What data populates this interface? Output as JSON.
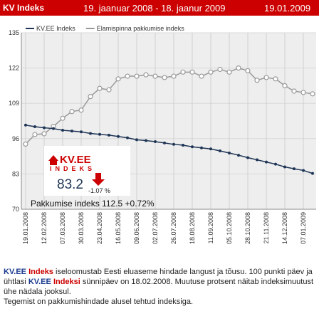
{
  "header": {
    "name": "KV Indeks",
    "period": "19. jaanuar 2008 - 18. jaanur 2009",
    "date": "19.01.2009"
  },
  "chart_data": {
    "type": "line",
    "categories": [
      "19.01.2008",
      null,
      "12.02.2008",
      null,
      "07.03.2008",
      null,
      "30.03.2008",
      null,
      "23.04.2008",
      null,
      "16.05.2008",
      null,
      "09.06.2008",
      null,
      "02.07.2008",
      null,
      "26.07.2008",
      null,
      "18.08.2008",
      null,
      "11.09.2008",
      null,
      "05.10.2008",
      null,
      "28.10.2008",
      null,
      "21.11.2008",
      null,
      "14.12.2008",
      null,
      "07.01.2009",
      null
    ],
    "series": [
      {
        "name": "KV.EE Indeks",
        "color": "#1f3556",
        "values": [
          101.0,
          100.4,
          100.0,
          99.7,
          99.1,
          98.8,
          98.5,
          97.9,
          97.6,
          97.3,
          96.8,
          96.3,
          95.6,
          95.3,
          94.9,
          94.4,
          93.9,
          93.6,
          93.0,
          92.6,
          92.2,
          91.5,
          90.7,
          89.9,
          89.0,
          88.2,
          87.4,
          86.6,
          85.6,
          84.9,
          84.3,
          83.2
        ]
      },
      {
        "name": "Elamispinna pakkumise indeks",
        "color": "#9a9a9a",
        "values": [
          94.0,
          97.5,
          97.8,
          100.5,
          103.5,
          106.0,
          106.5,
          111.5,
          114.5,
          114.0,
          118.0,
          119.0,
          119.0,
          119.5,
          119.0,
          118.5,
          119.0,
          120.5,
          120.5,
          119.0,
          120.5,
          121.5,
          120.5,
          122.0,
          121.0,
          117.5,
          118.5,
          118.0,
          115.5,
          113.5,
          113.0,
          112.5
        ]
      }
    ],
    "ylim": [
      70,
      135
    ],
    "yticks": [
      70,
      83,
      96,
      109,
      122,
      135
    ],
    "grid": true,
    "legend": "top-left"
  },
  "inset": {
    "logo": "KV.EE",
    "logo_sub": "INDEKS",
    "value": "83.2",
    "change": "-1.07 %",
    "offer": "Pakkumise indeks 112.5 +0.72%"
  },
  "description": [
    "KV.EE",
    "Indeks",
    " iseloomustab Eesti eluaseme hindade langust ja tõusu. 100 punkti päev ja ühtlasi ",
    "KV.EE",
    "Indeksi",
    " sünnipäev on 18.02.2008. Muutuse protsent näitab indeksimuutust ühe nädala jooksul.",
    "Tegemist on pakkumishindade alusel tehtud indeksiga."
  ]
}
